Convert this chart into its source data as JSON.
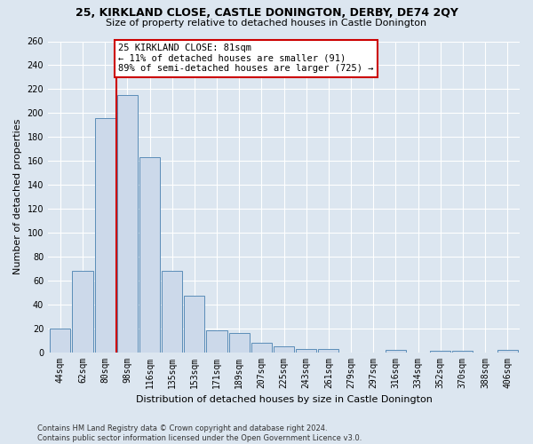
{
  "title1": "25, KIRKLAND CLOSE, CASTLE DONINGTON, DERBY, DE74 2QY",
  "title2": "Size of property relative to detached houses in Castle Donington",
  "xlabel": "Distribution of detached houses by size in Castle Donington",
  "ylabel": "Number of detached properties",
  "footnote": "Contains HM Land Registry data © Crown copyright and database right 2024.\nContains public sector information licensed under the Open Government Licence v3.0.",
  "bar_labels": [
    "44sqm",
    "62sqm",
    "80sqm",
    "98sqm",
    "116sqm",
    "135sqm",
    "153sqm",
    "171sqm",
    "189sqm",
    "207sqm",
    "225sqm",
    "243sqm",
    "261sqm",
    "279sqm",
    "297sqm",
    "316sqm",
    "334sqm",
    "352sqm",
    "370sqm",
    "388sqm",
    "406sqm"
  ],
  "bar_values": [
    20,
    68,
    196,
    215,
    163,
    68,
    47,
    18,
    16,
    8,
    5,
    3,
    3,
    0,
    0,
    2,
    0,
    1,
    1,
    0,
    2
  ],
  "bar_color": "#ccd9ea",
  "bar_edge_color": "#5b8db8",
  "background_color": "#dce6f0",
  "grid_color": "#ffffff",
  "annotation_line1": "25 KIRKLAND CLOSE: 81sqm",
  "annotation_line2": "← 11% of detached houses are smaller (91)",
  "annotation_line3": "89% of semi-detached houses are larger (725) →",
  "red_line_color": "#cc0000",
  "annotation_box_color": "#ffffff",
  "annotation_box_edge": "#cc0000",
  "ylim": [
    0,
    260
  ],
  "yticks": [
    0,
    20,
    40,
    60,
    80,
    100,
    120,
    140,
    160,
    180,
    200,
    220,
    240,
    260
  ],
  "red_line_x": 2.5,
  "title1_fontsize": 9,
  "title2_fontsize": 8,
  "ylabel_fontsize": 8,
  "xlabel_fontsize": 8,
  "tick_fontsize": 7,
  "footnote_fontsize": 6
}
